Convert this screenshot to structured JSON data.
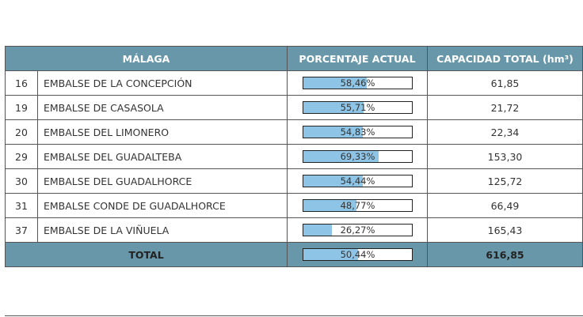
{
  "table": {
    "header": [
      "MÁLAGA",
      "PORCENTAJE ACTUAL",
      "CAPACIDAD TOTAL (hm³)"
    ],
    "rows": [
      {
        "id": "16",
        "name": "EMBALSE DE LA CONCEPCIÓN",
        "percent": 58.46,
        "percent_label": "58,46%",
        "capacity": "61,85"
      },
      {
        "id": "19",
        "name": "EMBALSE DE CASASOLA",
        "percent": 55.71,
        "percent_label": "55,71%",
        "capacity": "21,72"
      },
      {
        "id": "20",
        "name": "EMBALSE DEL LIMONERO",
        "percent": 54.83,
        "percent_label": "54,83%",
        "capacity": "22,34"
      },
      {
        "id": "29",
        "name": "EMBALSE DEL GUADALTEBA",
        "percent": 69.33,
        "percent_label": "69,33%",
        "capacity": "153,30"
      },
      {
        "id": "30",
        "name": "EMBALSE DEL GUADALHORCE",
        "percent": 54.44,
        "percent_label": "54,44%",
        "capacity": "125,72"
      },
      {
        "id": "31",
        "name": "EMBALSE CONDE DE GUADALHORCE",
        "percent": 48.77,
        "percent_label": "48,77%",
        "capacity": "66,49"
      },
      {
        "id": "37",
        "name": "EMBALSE DE LA VIÑUELA",
        "percent": 26.27,
        "percent_label": "26,27%",
        "capacity": "165,43"
      }
    ],
    "total": {
      "label": "TOTAL",
      "percent": 50.44,
      "percent_label": "50,44%",
      "capacity": "616,85"
    }
  }
}
